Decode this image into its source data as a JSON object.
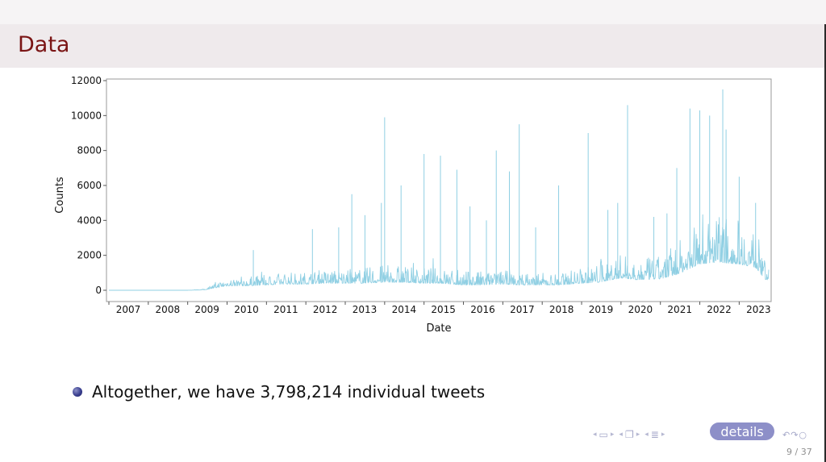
{
  "slide": {
    "title": "Data",
    "bullet": "Altogether, we have 3,798,214 individual tweets",
    "details_label": "details",
    "page_number": "9 / 37"
  },
  "nav_icons": [
    "arrow-left-icon",
    "frame-icon",
    "arrow-right-icon",
    "subsection-icon",
    "section-icon",
    "search-icon"
  ],
  "colors": {
    "title": "#7a1414",
    "series": "#8fcfe3",
    "details_button": "#8d8fc8"
  },
  "chart_data": {
    "type": "line",
    "title": "",
    "xlabel": "Date",
    "ylabel": "Counts",
    "x_ticks": [
      "2007",
      "2008",
      "2009",
      "2010",
      "2011",
      "2012",
      "2013",
      "2014",
      "2015",
      "2016",
      "2017",
      "2018",
      "2019",
      "2020",
      "2021",
      "2022",
      "2023"
    ],
    "y_ticks": [
      0,
      2000,
      4000,
      6000,
      8000,
      10000,
      12000
    ],
    "ylim": [
      0,
      12000
    ],
    "xlim": [
      "2007-01",
      "2023-10"
    ],
    "grid": false,
    "series": [
      {
        "x": [
          "2007-01",
          "2008-01",
          "2009-01",
          "2009-06",
          "2009-09",
          "2010-01",
          "2010-06",
          "2011-01",
          "2011-06",
          "2012-01",
          "2012-06",
          "2013-01",
          "2013-06",
          "2014-01",
          "2014-06",
          "2015-01",
          "2015-06",
          "2016-01",
          "2016-06",
          "2017-01",
          "2017-06",
          "2018-01",
          "2018-06",
          "2019-01",
          "2019-06",
          "2020-01",
          "2020-06",
          "2021-01",
          "2021-06",
          "2022-01",
          "2022-06",
          "2023-01",
          "2023-06",
          "2023-09"
        ],
        "baseline": [
          0,
          0,
          0,
          20,
          120,
          250,
          250,
          300,
          350,
          350,
          400,
          400,
          400,
          450,
          450,
          400,
          400,
          300,
          300,
          350,
          300,
          300,
          300,
          400,
          450,
          700,
          600,
          650,
          900,
          1500,
          1600,
          1500,
          1300,
          600
        ],
        "spread": [
          0,
          0,
          0,
          60,
          300,
          500,
          500,
          600,
          700,
          700,
          800,
          800,
          900,
          1000,
          1000,
          900,
          900,
          800,
          800,
          800,
          700,
          700,
          700,
          900,
          1100,
          1400,
          1200,
          1300,
          1800,
          2600,
          2800,
          2600,
          2200,
          1200
        ]
      }
    ],
    "peaks": [
      {
        "x": "2010-09",
        "y": 2300
      },
      {
        "x": "2012-03",
        "y": 3500
      },
      {
        "x": "2012-11",
        "y": 3600
      },
      {
        "x": "2013-03",
        "y": 5500
      },
      {
        "x": "2013-07",
        "y": 4300
      },
      {
        "x": "2013-12",
        "y": 5000
      },
      {
        "x": "2014-01",
        "y": 9900
      },
      {
        "x": "2014-06",
        "y": 6000
      },
      {
        "x": "2015-01",
        "y": 7800
      },
      {
        "x": "2015-06",
        "y": 7700
      },
      {
        "x": "2015-11",
        "y": 6900
      },
      {
        "x": "2016-03",
        "y": 4800
      },
      {
        "x": "2016-08",
        "y": 4000
      },
      {
        "x": "2016-11",
        "y": 8000
      },
      {
        "x": "2017-03",
        "y": 6800
      },
      {
        "x": "2017-06",
        "y": 9500
      },
      {
        "x": "2017-11",
        "y": 3600
      },
      {
        "x": "2018-06",
        "y": 6000
      },
      {
        "x": "2019-03",
        "y": 9000
      },
      {
        "x": "2019-09",
        "y": 4600
      },
      {
        "x": "2019-12",
        "y": 5000
      },
      {
        "x": "2020-03",
        "y": 10600
      },
      {
        "x": "2020-11",
        "y": 4200
      },
      {
        "x": "2021-03",
        "y": 4400
      },
      {
        "x": "2021-06",
        "y": 7000
      },
      {
        "x": "2021-10",
        "y": 10400
      },
      {
        "x": "2022-01",
        "y": 10300
      },
      {
        "x": "2022-04",
        "y": 10000
      },
      {
        "x": "2022-08",
        "y": 11500
      },
      {
        "x": "2022-09",
        "y": 9200
      },
      {
        "x": "2023-01",
        "y": 6500
      },
      {
        "x": "2023-06",
        "y": 5000
      }
    ]
  }
}
